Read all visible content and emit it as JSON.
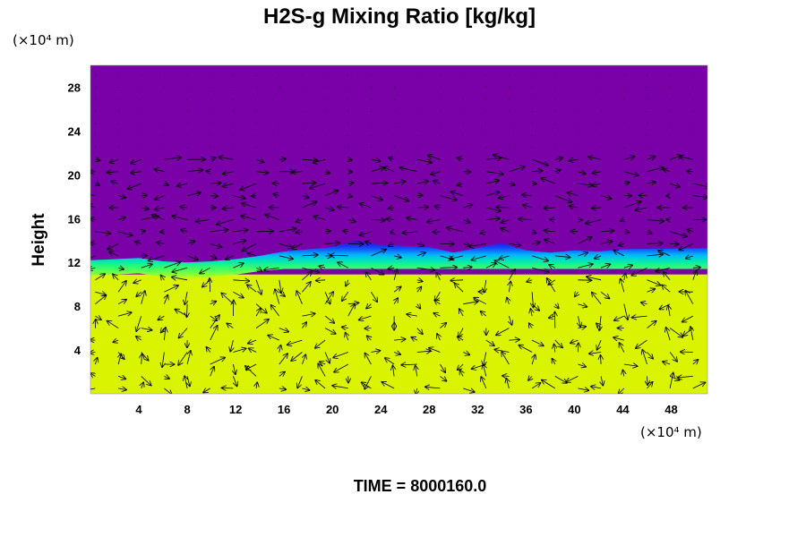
{
  "chart_data": {
    "type": "heatmap",
    "title": "H2S-g Mixing Ratio [kg/kg]",
    "xlabel": "",
    "ylabel": "Height",
    "x_unit": "(×10⁴ m)",
    "y_unit": "(×10⁴ m)",
    "x_ticks": [
      4,
      8,
      12,
      16,
      20,
      24,
      28,
      32,
      36,
      40,
      44,
      48
    ],
    "y_ticks": [
      4,
      8,
      12,
      16,
      20,
      24,
      28
    ],
    "xlim": [
      0,
      51
    ],
    "ylim": [
      0,
      30
    ],
    "overlay": "wind-vectors",
    "grid": false,
    "colors": {
      "upper": "#7a00a8",
      "lower": "#d9f300",
      "transition": [
        "#4a00c0",
        "#1a3cff",
        "#00a8ff",
        "#00e6c8",
        "#30ff80",
        "#a0ff20"
      ]
    },
    "boundary_height": [
      12.2,
      12.3,
      12.4,
      12.1,
      12.0,
      12.1,
      12.3,
      12.6,
      13.0,
      13.2,
      13.4,
      14.0,
      13.6,
      13.5,
      13.4,
      12.9,
      13.3,
      13.8,
      13.1,
      12.9,
      13.1,
      13.0,
      13.2,
      13.3
    ],
    "boundary_x": [
      0,
      2,
      4,
      6,
      8,
      10,
      12,
      14,
      16,
      18,
      20,
      22,
      24,
      26,
      28,
      30,
      32,
      34,
      36,
      38,
      40,
      42,
      44,
      51
    ]
  },
  "time_label": "TIME = 8000160.0"
}
